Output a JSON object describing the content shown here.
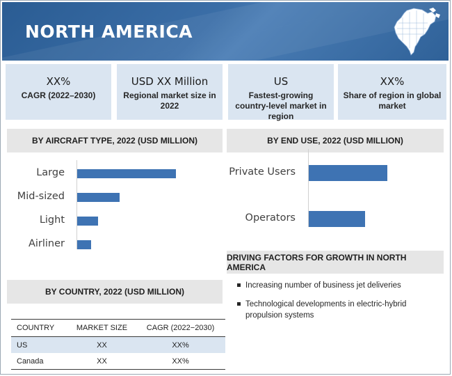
{
  "header": {
    "title": "NORTH AMERICA",
    "map_icon": "north-america-map-icon"
  },
  "kpis": [
    {
      "value": "XX%",
      "caption": "CAGR (2022–2030)"
    },
    {
      "value": "USD XX Million",
      "caption": "Regional market size in 2022"
    },
    {
      "value": "US",
      "caption": "Fastest-growing country-level market in region"
    },
    {
      "value": "XX%",
      "caption": "Share of region in global market"
    }
  ],
  "sections": {
    "aircraft_type": "BY AIRCRAFT TYPE, 2022 (USD MILLION)",
    "end_use": "BY END USE, 2022 (USD MILLION)",
    "country": "BY COUNTRY, 2022 (USD MILLION)",
    "drivers": "DRIVING FACTORS FOR GROWTH IN NORTH AMERICA"
  },
  "chart_data": [
    {
      "type": "bar",
      "orientation": "horizontal",
      "title": "BY AIRCRAFT TYPE, 2022 (USD MILLION)",
      "categories": [
        "Large",
        "Mid-sized",
        "Light",
        "Airliner"
      ],
      "values": [
        100,
        43,
        21,
        14
      ],
      "grid": false
    },
    {
      "type": "bar",
      "orientation": "horizontal",
      "title": "BY END USE, 2022 (USD MILLION)",
      "categories": [
        "Private Users",
        "Operators"
      ],
      "values": [
        100,
        72
      ],
      "grid": false
    }
  ],
  "drivers": [
    "Increasing number of business jet deliveries",
    "Technological developments  in electric-hybrid propulsion systems"
  ],
  "country_table": {
    "headers": [
      "COUNTRY",
      "MARKET SIZE",
      "CAGR (2022−2030)"
    ],
    "rows": [
      [
        "US",
        "XX",
        "XX%"
      ],
      [
        "Canada",
        "XX",
        "XX%"
      ]
    ]
  },
  "colors": {
    "banner": "#2f6198",
    "kpi_bg": "#dae5f1",
    "bar": "#3e73b3",
    "section_bg": "#e6e6e6"
  }
}
